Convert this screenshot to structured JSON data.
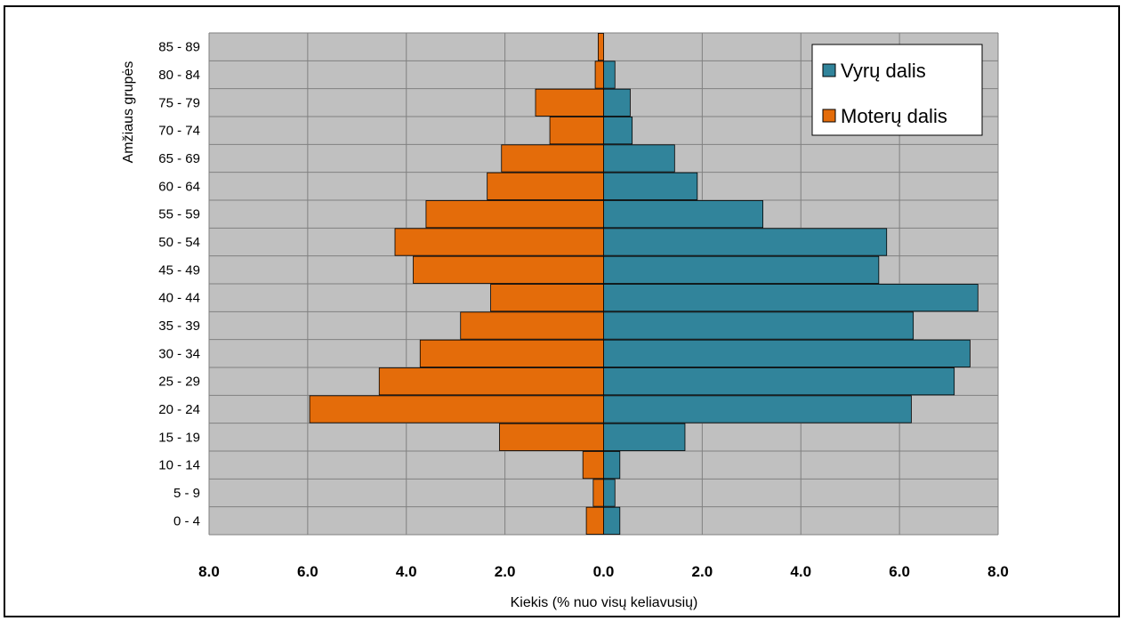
{
  "chart_data": {
    "type": "bar",
    "orientation": "horizontal-population-pyramid",
    "xlabel": "Kiekis (% nuo visų keliavusių)",
    "ylabel": "Amžiaus grupės",
    "xlim": [
      -8,
      8
    ],
    "x_ticks": [
      "8.0",
      "6.0",
      "4.0",
      "2.0",
      "0.0",
      "2.0",
      "4.0",
      "6.0",
      "8.0"
    ],
    "grid": true,
    "legend_position": "top-right",
    "categories": [
      "0 - 4",
      "5 - 9",
      "10 - 14",
      "15 - 19",
      "20 - 24",
      "25 - 29",
      "30 - 34",
      "35 - 39",
      "40 - 44",
      "45 - 49",
      "50 - 54",
      "55 - 59",
      "60 - 64",
      "65 - 69",
      "70 - 74",
      "75 - 79",
      "80 - 84",
      "85 - 89"
    ],
    "series": [
      {
        "name": "Vyrų dalis",
        "color": "#31849b",
        "side": "right",
        "values": [
          0.33,
          0.23,
          0.33,
          1.65,
          6.24,
          7.11,
          7.43,
          6.28,
          7.59,
          5.58,
          5.74,
          3.23,
          1.9,
          1.44,
          0.58,
          0.54,
          0.23,
          0.0
        ]
      },
      {
        "name": "Moterų dalis",
        "color": "#e46c0a",
        "side": "left",
        "values": [
          0.35,
          0.21,
          0.42,
          2.11,
          5.96,
          4.55,
          3.72,
          2.9,
          2.29,
          3.86,
          4.23,
          3.6,
          2.36,
          2.07,
          1.09,
          1.38,
          0.17,
          0.11
        ]
      }
    ]
  }
}
